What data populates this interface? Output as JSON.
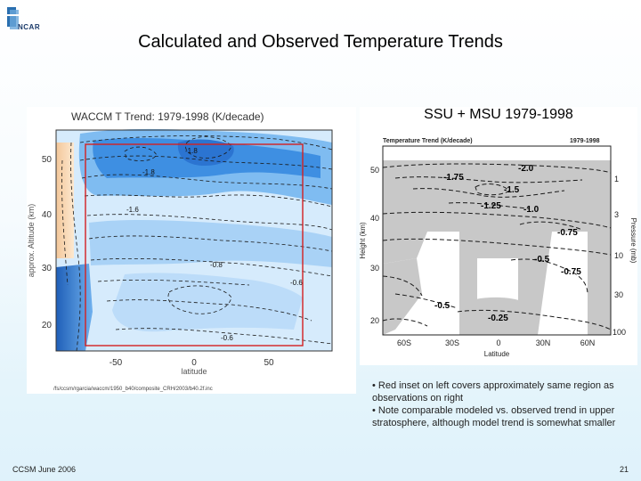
{
  "logo": {
    "text": "NCAR"
  },
  "title": "Calculated and Observed Temperature Trends",
  "left_plot": {
    "title": "WACCM T Trend: 1979-1998 (K/decade)",
    "xlabel": "latitude",
    "ylabel": "approx. Altitude (km)",
    "x_ticks": [
      "-50",
      "0",
      "50"
    ],
    "y_ticks": [
      "20",
      "30",
      "40",
      "50"
    ],
    "contour_labels": [
      "-1.8",
      "-1.8",
      "-1.6",
      "-0.8",
      "-0.6",
      "-0.6"
    ],
    "filepath": "/fs/ccsm/rgarcia/waccm/1950_b40/composite_CRH/2003/b40.2f.inc"
  },
  "right_plot": {
    "header_label": "SSU + MSU 1979-1998",
    "title": "Temperature Trend (K/decade)",
    "years": "1979-1998",
    "xlabel": "Latitude",
    "ylabel_left": "Height (km)",
    "ylabel_right": "Pressure (mb)",
    "x_ticks": [
      "60S",
      "30S",
      "0",
      "30N",
      "60N"
    ],
    "y_ticks_left": [
      "20",
      "30",
      "40",
      "50"
    ],
    "y_ticks_right": [
      "1",
      "3",
      "10",
      "30",
      "100"
    ],
    "contour_labels": [
      "-2.0",
      "-1.75",
      "-1.5",
      "-1.25",
      "-1.0",
      "-0.75",
      "-0.5",
      "-0.75",
      "-0.5",
      "-0.25"
    ]
  },
  "notes": [
    "• Red inset on left covers approximately same region as observations on right",
    "• Note comparable modeled vs. observed trend in upper stratosphere, although model trend is somewhat smaller"
  ],
  "footer": {
    "left": "CCSM June 2006",
    "right": "21"
  },
  "colors": {
    "frame_red": "#d42020",
    "contour_blue_dark": "#2f7fd9",
    "contour_blue_light": "#c9e3fb",
    "grey_fill": "#c8c8c8"
  }
}
